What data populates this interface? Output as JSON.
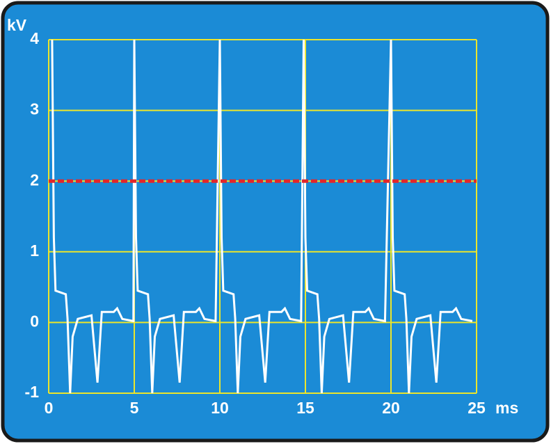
{
  "chart_data": {
    "type": "line",
    "y_label": "kV",
    "x_label": "ms",
    "xlim": [
      0,
      25
    ],
    "ylim": [
      -1,
      4
    ],
    "xticks": [
      0,
      5,
      10,
      15,
      20,
      25
    ],
    "yticks": [
      -1,
      0,
      1,
      2,
      3,
      4
    ],
    "grid": true,
    "grid_color": "#ece52a",
    "background": "#1b8bd6",
    "reference_line": {
      "value": 2,
      "color": "#e3262b"
    },
    "series": [
      {
        "color": "#ffffff",
        "x": [
          0.2,
          0.3,
          0.4,
          1.0,
          1.1,
          1.25,
          1.4,
          1.7,
          2.5,
          2.85,
          3.1,
          3.8,
          4.0,
          4.3,
          4.95,
          5.0,
          5.1,
          5.2,
          5.8,
          5.9,
          6.05,
          6.2,
          6.5,
          7.3,
          7.65,
          7.9,
          8.6,
          8.8,
          9.1,
          9.75,
          10.0,
          10.1,
          10.2,
          10.8,
          10.9,
          11.05,
          11.2,
          11.5,
          12.3,
          12.65,
          12.9,
          13.6,
          13.8,
          14.1,
          14.75,
          14.9,
          15.0,
          15.1,
          15.7,
          15.8,
          15.95,
          16.1,
          16.4,
          17.2,
          17.55,
          17.8,
          18.5,
          18.7,
          19.0,
          19.65,
          20.0,
          20.1,
          20.2,
          20.8,
          20.9,
          21.05,
          21.2,
          21.5,
          22.3,
          22.65,
          22.9,
          23.6,
          23.8,
          24.1,
          24.75
        ],
        "values": [
          4,
          1.2,
          0.45,
          0.4,
          0.05,
          -1,
          -0.2,
          0.05,
          0.1,
          -0.85,
          0.15,
          0.15,
          0.2,
          0.05,
          0.02,
          4,
          1.2,
          0.45,
          0.4,
          0.05,
          -1,
          -0.2,
          0.05,
          0.1,
          -0.85,
          0.15,
          0.15,
          0.2,
          0.05,
          0.02,
          4,
          1.2,
          0.45,
          0.4,
          0.05,
          -1,
          -0.2,
          0.05,
          0.1,
          -0.85,
          0.15,
          0.15,
          0.2,
          0.05,
          0.02,
          4,
          1.2,
          0.45,
          0.4,
          0.05,
          -1,
          -0.2,
          0.05,
          0.1,
          -0.85,
          0.15,
          0.15,
          0.2,
          0.05,
          0.02,
          4,
          1.2,
          0.45,
          0.4,
          0.05,
          -1,
          -0.2,
          0.05,
          0.1,
          -0.85,
          0.15,
          0.15,
          0.2,
          0.05,
          0.02
        ]
      }
    ]
  }
}
